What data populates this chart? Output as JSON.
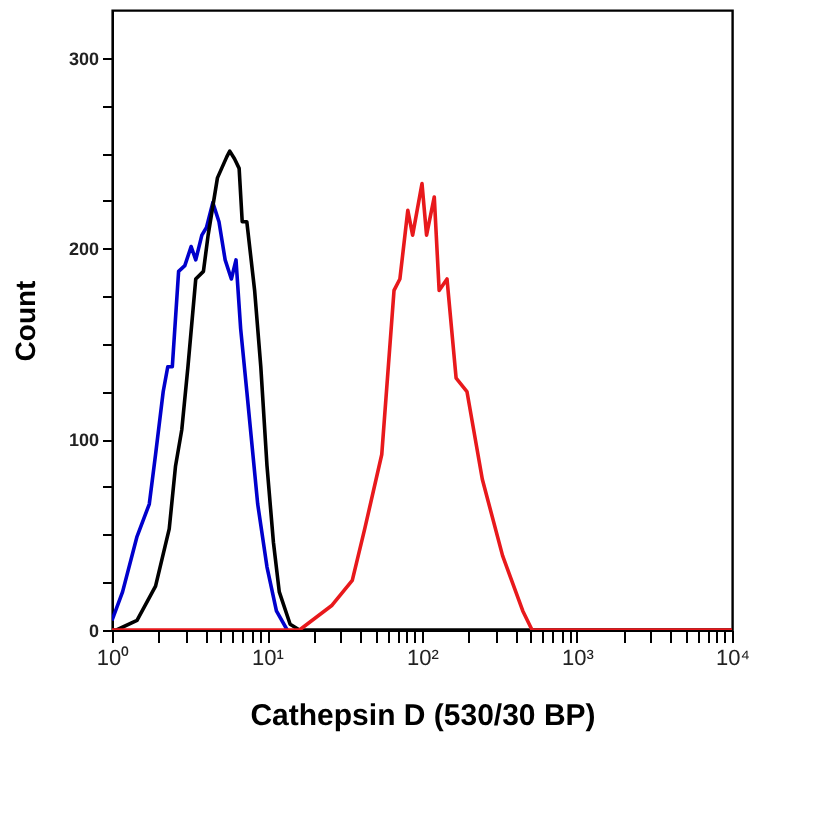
{
  "chart_data": {
    "type": "line",
    "xlabel": "Cathepsin D (530/30 BP)",
    "ylabel": "Count",
    "log": "x",
    "grid": false,
    "legend": false,
    "marker": "none",
    "line_style": "solid",
    "xlim": [
      1,
      10000
    ],
    "ylim": [
      0,
      325
    ],
    "xticks": [
      {
        "value": 1,
        "label": "10⁰"
      },
      {
        "value": 2,
        "label": null
      },
      {
        "value": 3,
        "label": null
      },
      {
        "value": 4,
        "label": null
      },
      {
        "value": 5,
        "label": null
      },
      {
        "value": 6,
        "label": null
      },
      {
        "value": 7,
        "label": null
      },
      {
        "value": 8,
        "label": null
      },
      {
        "value": 9,
        "label": null
      },
      {
        "value": 10,
        "label": "10¹"
      },
      {
        "value": 20,
        "label": null
      },
      {
        "value": 30,
        "label": null
      },
      {
        "value": 40,
        "label": null
      },
      {
        "value": 50,
        "label": null
      },
      {
        "value": 60,
        "label": null
      },
      {
        "value": 70,
        "label": null
      },
      {
        "value": 80,
        "label": null
      },
      {
        "value": 90,
        "label": null
      },
      {
        "value": 100,
        "label": "10²"
      },
      {
        "value": 200,
        "label": null
      },
      {
        "value": 300,
        "label": null
      },
      {
        "value": 400,
        "label": null
      },
      {
        "value": 500,
        "label": null
      },
      {
        "value": 600,
        "label": null
      },
      {
        "value": 700,
        "label": null
      },
      {
        "value": 800,
        "label": null
      },
      {
        "value": 900,
        "label": null
      },
      {
        "value": 1000,
        "label": "10³"
      },
      {
        "value": 2000,
        "label": null
      },
      {
        "value": 3000,
        "label": null
      },
      {
        "value": 4000,
        "label": null
      },
      {
        "value": 5000,
        "label": null
      },
      {
        "value": 6000,
        "label": null
      },
      {
        "value": 7000,
        "label": null
      },
      {
        "value": 8000,
        "label": null
      },
      {
        "value": 9000,
        "label": null
      },
      {
        "value": 10000,
        "label": "10⁴"
      }
    ],
    "yticks": [
      0,
      {
        "value": 25,
        "label": null
      },
      {
        "value": 50,
        "label": null
      },
      {
        "value": 75,
        "label": null
      },
      100,
      {
        "value": 125,
        "label": null
      },
      {
        "value": 150,
        "label": null
      },
      {
        "value": 175,
        "label": null
      },
      200,
      {
        "value": 225,
        "label": null
      },
      {
        "value": 250,
        "label": null
      },
      {
        "value": 275,
        "label": null
      },
      300
    ],
    "series": [
      {
        "color": "#0000cc",
        "x": [
          1,
          1.17,
          1.45,
          1.74,
          1.91,
          2.14,
          2.29,
          2.45,
          2.69,
          2.95,
          3.24,
          3.47,
          3.8,
          4.07,
          4.47,
          4.9,
          5.37,
          5.89,
          6.31,
          6.76,
          7.41,
          8.71,
          10,
          11.5,
          13.5
        ],
        "values": [
          5,
          20,
          49,
          66,
          92,
          125,
          138,
          138,
          188,
          191,
          201,
          194,
          207,
          211,
          224,
          214,
          194,
          184,
          194,
          158,
          125,
          66,
          33,
          10,
          0
        ]
      },
      {
        "color": "#000000",
        "x": [
          1,
          1.07,
          1.45,
          1.91,
          2.34,
          2.57,
          2.82,
          3.09,
          3.47,
          3.89,
          4.17,
          4.79,
          5.5,
          5.75,
          6.17,
          6.61,
          6.92,
          7.41,
          8.32,
          9.12,
          10,
          11,
          12,
          14.1,
          16.2,
          10000
        ],
        "values": [
          0,
          0,
          5,
          23,
          53,
          86,
          105,
          138,
          184,
          188,
          207,
          237,
          248,
          251,
          247,
          242,
          214,
          214,
          178,
          138,
          86,
          46,
          20,
          3,
          0,
          0
        ]
      },
      {
        "color": "#e8191c",
        "x": [
          1,
          16.2,
          26.3,
          35.5,
          42.7,
          55,
          66,
          72,
          81,
          87,
          100,
          107,
          120,
          129,
          145,
          166,
          195,
          245,
          331,
          447,
          513,
          10000
        ],
        "values": [
          0,
          0,
          13,
          26,
          53,
          92,
          178,
          184,
          220,
          207,
          234,
          207,
          227,
          178,
          184,
          132,
          125,
          79,
          39,
          10,
          0,
          0
        ]
      }
    ]
  }
}
